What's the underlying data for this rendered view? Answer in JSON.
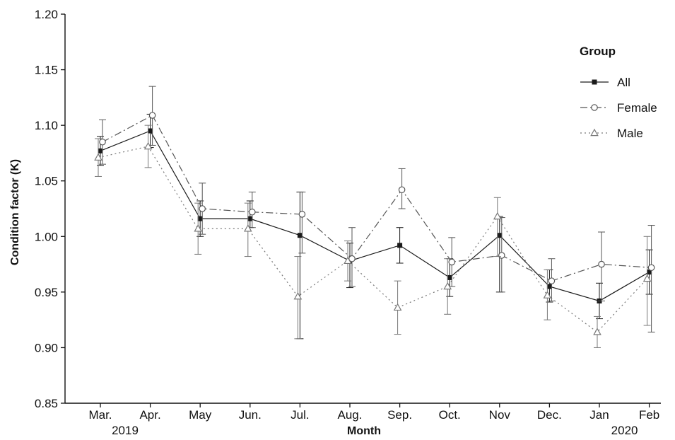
{
  "chart_data": {
    "type": "line",
    "xlabel": "Month",
    "ylabel": "Condition factor (K)",
    "ylim": [
      0.85,
      1.2
    ],
    "yticks": [
      "0.85",
      "0.90",
      "0.95",
      "1.00",
      "1.05",
      "1.10",
      "1.15",
      "1.20"
    ],
    "categories": [
      "Mar.",
      "Apr.",
      "May",
      "Jun.",
      "Jul.",
      "Aug.",
      "Sep.",
      "Oct.",
      "Nov",
      "Dec.",
      "Jan",
      "Feb"
    ],
    "year_labels": {
      "start": "2019",
      "end": "2020"
    },
    "grid": false,
    "legend": {
      "title": "Group",
      "position": "right"
    },
    "series": [
      {
        "name": "All",
        "marker": "filled-square",
        "line_style": "solid",
        "color": "#1a1a1a",
        "values": [
          1.077,
          1.095,
          1.016,
          1.016,
          1.001,
          0.978,
          0.992,
          0.963,
          1.001,
          0.955,
          0.942,
          0.968
        ],
        "err_low": [
          1.064,
          1.08,
          1.0,
          1.008,
          0.908,
          0.954,
          0.976,
          0.946,
          0.95,
          0.941,
          0.926,
          0.948
        ],
        "err_high": [
          1.09,
          1.11,
          1.032,
          1.032,
          1.04,
          0.994,
          1.008,
          0.98,
          1.018,
          0.97,
          0.958,
          0.988
        ]
      },
      {
        "name": "Female",
        "marker": "open-circle",
        "line_style": "dashdot",
        "color": "#555555",
        "values": [
          1.085,
          1.109,
          1.025,
          1.022,
          1.02,
          0.98,
          1.042,
          0.977,
          0.983,
          0.96,
          0.975,
          0.972
        ],
        "err_low": [
          1.065,
          1.082,
          1.002,
          1.008,
          0.985,
          0.955,
          1.025,
          0.955,
          0.95,
          0.942,
          0.942,
          0.914
        ],
        "err_high": [
          1.105,
          1.135,
          1.048,
          1.04,
          1.04,
          1.008,
          1.061,
          0.999,
          1.017,
          0.98,
          1.004,
          1.01
        ]
      },
      {
        "name": "Male",
        "marker": "open-triangle",
        "line_style": "dotted",
        "color": "#777777",
        "values": [
          1.071,
          1.081,
          1.007,
          1.007,
          0.946,
          0.978,
          0.936,
          0.955,
          1.018,
          0.947,
          0.914,
          0.962
        ],
        "err_low": [
          1.054,
          1.062,
          0.984,
          0.982,
          0.908,
          0.96,
          0.912,
          0.93,
          0.982,
          0.925,
          0.9,
          0.92
        ],
        "err_high": [
          1.088,
          1.1,
          1.03,
          1.03,
          0.982,
          0.996,
          0.96,
          0.98,
          1.035,
          0.97,
          0.928,
          1.0
        ]
      }
    ]
  }
}
